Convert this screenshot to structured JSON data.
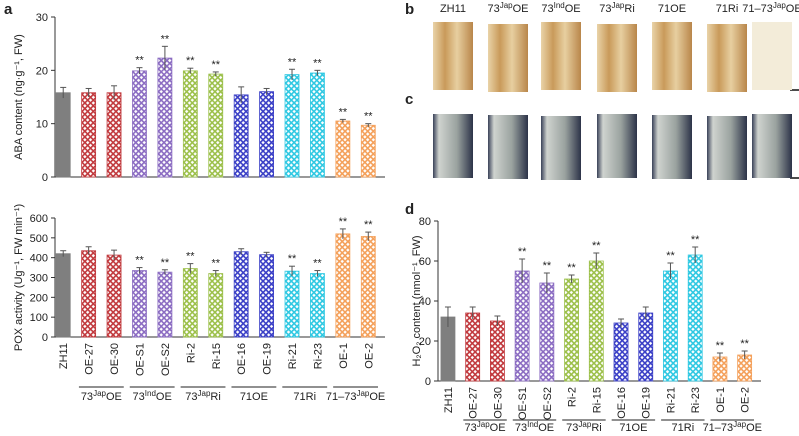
{
  "panels": [
    "a",
    "b",
    "c",
    "d"
  ],
  "images": {
    "labels": [
      [
        "ZH11"
      ],
      [
        "73",
        "Jap",
        "OE"
      ],
      [
        "73",
        "Ind",
        "OE"
      ],
      [
        "73",
        "Jap",
        "Ri"
      ],
      [
        "71OE"
      ],
      [
        "71Ri"
      ],
      [
        "71–73",
        "Jap",
        "OE"
      ]
    ]
  },
  "chart_data": [
    {
      "type": "bar",
      "ylabel": "ABA content (ng·g⁻¹, FW)",
      "values": [
        15.8,
        15.8,
        15.8,
        19.9,
        22.3,
        19.9,
        19.3,
        15.4,
        16.0,
        19.2,
        19.5,
        10.5,
        9.7
      ],
      "errors": [
        1.0,
        0.8,
        1.3,
        0.6,
        2.2,
        0.5,
        0.4,
        1.5,
        0.6,
        1.0,
        0.5,
        0.3,
        0.3
      ],
      "annotations": [
        null,
        null,
        null,
        "**",
        "**",
        "**",
        "**",
        null,
        null,
        "**",
        "**",
        "**",
        "**"
      ],
      "colors": [
        "#7f7f7f",
        "#c1393d",
        "#c1393d",
        "#8b6cc2",
        "#8b6cc2",
        "#9cc04a",
        "#9cc04a",
        "#3a3fc6",
        "#3a3fc6",
        "#2ec8e2",
        "#2ec8e2",
        "#f4a05a",
        "#f4a05a"
      ],
      "hatched": [
        false,
        true,
        true,
        true,
        true,
        true,
        true,
        true,
        true,
        true,
        true,
        true,
        true
      ],
      "ylim": [
        0,
        30
      ],
      "yticks": [
        0,
        10,
        20,
        30
      ]
    },
    {
      "type": "bar",
      "ylabel": "POX activity (Ug⁻¹, FW min⁻¹)",
      "categories": [
        "ZH11",
        "OE-27",
        "OE-30",
        "OE-S1",
        "OE-S2",
        "Ri-2",
        "Ri-15",
        "OE-16",
        "OE-19",
        "Ri-21",
        "Ri-23",
        "OE-1",
        "OE-2"
      ],
      "groups": [
        [
          "73",
          "Jap",
          "OE"
        ],
        [
          "73",
          "Ind",
          "OE"
        ],
        [
          "73",
          "Jap",
          "Ri"
        ],
        [
          "71OE"
        ],
        [
          "71Ri"
        ],
        [
          "71–73",
          "Jap",
          "OE"
        ]
      ],
      "values": [
        420,
        435,
        413,
        335,
        327,
        345,
        320,
        430,
        415,
        332,
        320,
        520,
        507
      ],
      "errors": [
        15,
        20,
        25,
        15,
        12,
        25,
        15,
        15,
        12,
        25,
        15,
        25,
        22
      ],
      "annotations": [
        null,
        null,
        null,
        "**",
        "**",
        "**",
        "**",
        null,
        null,
        "**",
        "**",
        "**",
        "**"
      ],
      "colors": [
        "#7f7f7f",
        "#c1393d",
        "#c1393d",
        "#8b6cc2",
        "#8b6cc2",
        "#9cc04a",
        "#9cc04a",
        "#3a3fc6",
        "#3a3fc6",
        "#2ec8e2",
        "#2ec8e2",
        "#f4a05a",
        "#f4a05a"
      ],
      "hatched": [
        false,
        true,
        true,
        true,
        true,
        true,
        true,
        true,
        true,
        true,
        true,
        true,
        true
      ],
      "ylim": [
        0,
        600
      ],
      "yticks": [
        0,
        100,
        200,
        300,
        400,
        500,
        600
      ]
    },
    {
      "type": "bar",
      "ylabel": "H₂O₂ content (nmol⁻¹, FW)",
      "categories": [
        "ZH11",
        "OE-27",
        "OE-30",
        "OE-S1",
        "OE-S2",
        "Ri-2",
        "Ri-15",
        "OE-16",
        "OE-19",
        "Ri-21",
        "Ri-23",
        "OE-1",
        "OE-2"
      ],
      "groups": [
        [
          "73",
          "Jap",
          "OE"
        ],
        [
          "73",
          "Ind",
          "OE"
        ],
        [
          "73",
          "Jap",
          "Ri"
        ],
        [
          "71OE"
        ],
        [
          "71Ri"
        ],
        [
          "71–73",
          "Jap",
          "OE"
        ]
      ],
      "values": [
        32,
        34,
        30,
        55,
        49,
        51,
        60,
        29,
        34,
        55,
        63,
        12,
        13
      ],
      "errors": [
        5,
        3,
        2.5,
        6,
        5,
        2,
        4,
        2,
        3,
        4,
        4,
        2,
        2
      ],
      "annotations": [
        null,
        null,
        null,
        "**",
        "**",
        "**",
        "**",
        null,
        null,
        "**",
        "**",
        "**",
        "**"
      ],
      "colors": [
        "#7f7f7f",
        "#c1393d",
        "#c1393d",
        "#8b6cc2",
        "#8b6cc2",
        "#9cc04a",
        "#9cc04a",
        "#3a3fc6",
        "#3a3fc6",
        "#2ec8e2",
        "#2ec8e2",
        "#f4a05a",
        "#f4a05a"
      ],
      "hatched": [
        false,
        true,
        true,
        true,
        true,
        true,
        true,
        true,
        true,
        true,
        true,
        true,
        true
      ],
      "ylim": [
        0,
        80
      ],
      "yticks": [
        0,
        20,
        40,
        60,
        80
      ]
    }
  ]
}
